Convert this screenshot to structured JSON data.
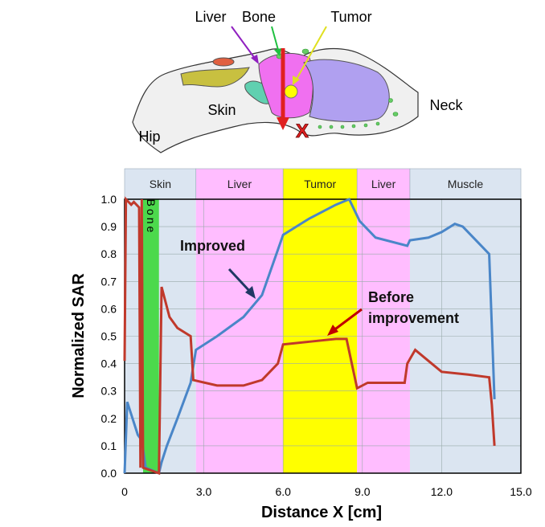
{
  "diagram": {
    "labels": {
      "liver": "Liver",
      "bone": "Bone",
      "tumor": "Tumor",
      "skin": "Skin",
      "neck": "Neck",
      "hip": "Hip"
    }
  },
  "chart_data": {
    "type": "line",
    "x_label": "Distance X [cm]",
    "y_label": "Normalized SAR",
    "xlim": [
      0,
      15
    ],
    "ylim": [
      0,
      1
    ],
    "xticks": [
      0,
      {
        "value": 3,
        "label": "3.0"
      },
      {
        "value": 6,
        "label": "6.0"
      },
      {
        "value": 9,
        "label": "9.0"
      },
      {
        "value": 12,
        "label": "12.0"
      },
      {
        "value": 15,
        "label": "15.0"
      }
    ],
    "yticks": [
      {
        "value": 0,
        "label": "0.0"
      },
      0.1,
      0.2,
      0.3,
      0.4,
      0.5,
      0.6,
      0.7,
      0.8,
      0.9,
      {
        "value": 1,
        "label": "1.0"
      }
    ],
    "grid": true,
    "regions": [
      {
        "name": "Skin",
        "start": 0,
        "end": 2.7,
        "color": "#dbe5f1"
      },
      {
        "name": "Liver",
        "start": 2.7,
        "end": 6.0,
        "color": "#ffbdff"
      },
      {
        "name": "Tumor",
        "start": 6.0,
        "end": 8.8,
        "color": "#ffff00"
      },
      {
        "name": "Liver",
        "start": 8.8,
        "end": 10.8,
        "color": "#ffbdff"
      },
      {
        "name": "Muscle",
        "start": 10.8,
        "end": 15,
        "color": "#dbe5f1"
      }
    ],
    "inner_region": {
      "name": "Bone",
      "start": 0.7,
      "end": 1.3,
      "color": "#4cd94c"
    },
    "series": [
      {
        "name": "Improved",
        "color": "#4a86c8",
        "x": [
          0,
          0.1,
          0.3,
          0.5,
          0.65,
          0.8,
          1.3,
          1.4,
          1.6,
          2.0,
          2.5,
          2.7,
          3.5,
          4.5,
          5.2,
          6.0,
          7.0,
          8.0,
          8.5,
          8.9,
          9.5,
          10.7,
          10.8,
          11.5,
          12.0,
          12.5,
          12.8,
          13.5,
          13.8,
          14.0
        ],
        "values": [
          0,
          0.26,
          0.2,
          0.14,
          0.12,
          0.02,
          0.0,
          0.04,
          0.1,
          0.2,
          0.33,
          0.45,
          0.5,
          0.57,
          0.65,
          0.87,
          0.93,
          0.98,
          1.0,
          0.92,
          0.86,
          0.83,
          0.85,
          0.86,
          0.88,
          0.91,
          0.9,
          0.83,
          0.8,
          0.27
        ]
      },
      {
        "name": "Before improvement",
        "color": "#c0392b",
        "x": [
          0,
          0.05,
          0.25,
          0.35,
          0.55,
          0.6,
          0.65,
          0.7,
          1.3,
          1.4,
          1.7,
          2.0,
          2.5,
          2.6,
          3.5,
          4.5,
          5.2,
          5.8,
          6.0,
          7.0,
          8.0,
          8.4,
          8.8,
          9.2,
          10.0,
          10.6,
          10.7,
          11.0,
          11.5,
          12.0,
          13.0,
          13.8,
          13.9,
          14.0
        ],
        "values": [
          0.41,
          1.0,
          0.98,
          0.99,
          0.97,
          0.02,
          1.0,
          0.02,
          0.0,
          0.68,
          0.57,
          0.53,
          0.5,
          0.34,
          0.32,
          0.32,
          0.34,
          0.4,
          0.47,
          0.48,
          0.49,
          0.49,
          0.31,
          0.33,
          0.33,
          0.33,
          0.4,
          0.45,
          0.41,
          0.37,
          0.36,
          0.35,
          0.25,
          0.1
        ]
      }
    ]
  }
}
